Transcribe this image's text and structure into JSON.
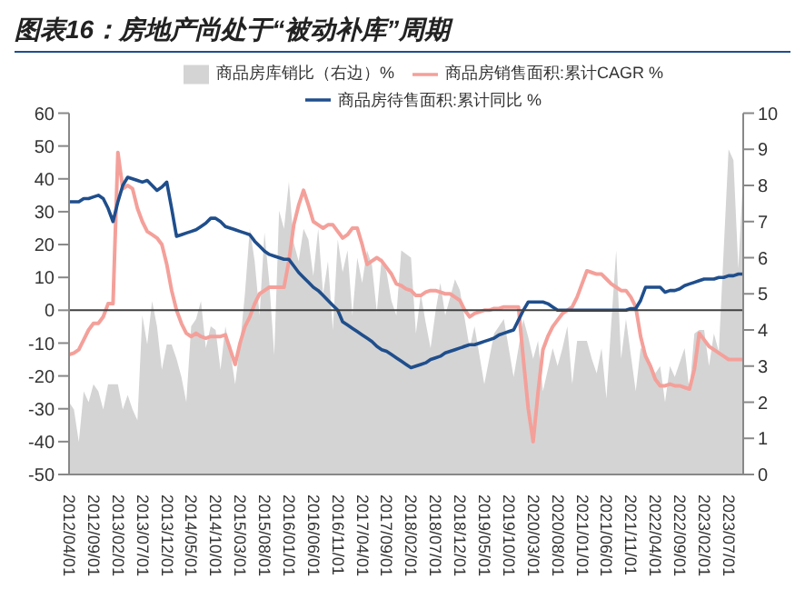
{
  "chart_data": {
    "type": "line",
    "title": "图表16：房地产尚处于“被动补库”周期",
    "categories": [
      "2012/04/01",
      null,
      null,
      null,
      null,
      "2012/09/01",
      null,
      null,
      null,
      null,
      "2013/02/01",
      null,
      null,
      null,
      null,
      "2013/07/01",
      null,
      null,
      null,
      null,
      "2013/12/01",
      null,
      null,
      null,
      null,
      "2014/05/01",
      null,
      null,
      null,
      null,
      "2014/10/01",
      null,
      null,
      null,
      null,
      "2015/03/01",
      null,
      null,
      null,
      null,
      "2015/08/01",
      null,
      null,
      null,
      null,
      "2016/01/01",
      null,
      null,
      null,
      null,
      "2016/06/01",
      null,
      null,
      null,
      null,
      "2016/11/01",
      null,
      null,
      null,
      null,
      "2017/04/01",
      null,
      null,
      null,
      null,
      "2017/09/01",
      null,
      null,
      null,
      null,
      "2018/02/01",
      null,
      null,
      null,
      null,
      "2018/07/01",
      null,
      null,
      null,
      null,
      "2018/12/01",
      null,
      null,
      null,
      null,
      "2019/05/01",
      null,
      null,
      null,
      null,
      "2019/10/01",
      null,
      null,
      null,
      null,
      "2020/03/01",
      null,
      null,
      null,
      null,
      "2020/08/01",
      null,
      null,
      null,
      null,
      "2021/01/01",
      null,
      null,
      null,
      null,
      "2021/06/01",
      null,
      null,
      null,
      null,
      "2021/11/01",
      null,
      null,
      null,
      null,
      "2022/04/01",
      null,
      null,
      null,
      null,
      "2022/09/01",
      null,
      null,
      null,
      null,
      "2023/02/01",
      null,
      null,
      null,
      null,
      "2023/07/01",
      null,
      null,
      null
    ],
    "series": [
      {
        "name": "商品房库销比（右边）%",
        "type": "area",
        "axis": "y2",
        "color": "#d4d4d4",
        "values": [
          2.0,
          1.8,
          0.9,
          2.3,
          2.0,
          2.5,
          2.3,
          1.8,
          2.5,
          2.5,
          2.5,
          1.8,
          2.2,
          1.8,
          1.5,
          4.4,
          3.6,
          4.8,
          4.1,
          2.9,
          3.6,
          3.6,
          3.2,
          2.7,
          2.0,
          4.1,
          4.3,
          4.8,
          3.5,
          4.1,
          4.0,
          2.9,
          4.1,
          3.4,
          2.5,
          3.6,
          5.0,
          6.8,
          5.9,
          4.4,
          6.7,
          5.3,
          3.3,
          7.3,
          6.8,
          8.1,
          6.4,
          5.9,
          6.8,
          6.5,
          5.5,
          6.8,
          5.0,
          5.9,
          4.0,
          6.5,
          5.6,
          6.2,
          4.4,
          6.0,
          5.3,
          6.2,
          5.8,
          4.5,
          6.0,
          5.6,
          4.8,
          4.4,
          6.2,
          6.1,
          6.0,
          3.9,
          5.0,
          4.2,
          3.5,
          4.5,
          5.3,
          4.4,
          4.9,
          5.4,
          5.1,
          4.3,
          3.5,
          4.1,
          3.3,
          2.5,
          3.2,
          3.9,
          4.1,
          4.3,
          3.5,
          2.7,
          3.5,
          4.3,
          3.8,
          3.2,
          3.7,
          2.3,
          2.9,
          3.5,
          3.0,
          3.5,
          4.1,
          2.5,
          3.7,
          3.7,
          3.7,
          3.2,
          2.8,
          3.5,
          2.1,
          4.2,
          6.2,
          3.2,
          4.3,
          3.3,
          2.3,
          3.5,
          3.4,
          3.1,
          2.8,
          3.0,
          2.0,
          3.0,
          2.7,
          3.1,
          3.5,
          2.3,
          3.9,
          4.0,
          4.0,
          3.0,
          3.9,
          3.4,
          6.2,
          9.0,
          8.7,
          5.7,
          8.3
        ]
      },
      {
        "name": "商品房销售面积:累计CAGR  %",
        "color": "#f4a09a",
        "values": [
          -13.5,
          -13,
          -12,
          -9,
          -6,
          -4,
          -4,
          -2,
          2,
          2,
          48,
          37,
          38,
          37,
          31,
          27,
          24,
          23,
          22,
          20,
          14,
          6,
          0,
          -4,
          -7,
          -8,
          -7,
          -8,
          -8.5,
          -8,
          -8,
          -8,
          -7.5,
          -12,
          -16.5,
          -10,
          -5,
          -2,
          2,
          5,
          6,
          7,
          7,
          7,
          7,
          15,
          26,
          32,
          36.5,
          32,
          27,
          26,
          25,
          26,
          26,
          24,
          22,
          23,
          25,
          25,
          20,
          14,
          15,
          16,
          15,
          13,
          11,
          8,
          7.5,
          6.5,
          6,
          4.5,
          4.5,
          5.5,
          6,
          6,
          5.5,
          5,
          5,
          4,
          3,
          0,
          -2,
          -1,
          -0.5,
          0,
          0,
          0.5,
          0.5,
          1,
          1,
          1,
          1,
          -15,
          -30,
          -40,
          -25,
          -12,
          -8,
          -5,
          -3,
          -1,
          0,
          1,
          4,
          8,
          12,
          11.5,
          11,
          11,
          9.5,
          8,
          7,
          6,
          6,
          4,
          1,
          -8,
          -14,
          -17,
          -21,
          -23,
          -23,
          -22.5,
          -23,
          -23,
          -23.5,
          -24,
          -18,
          -7,
          -9,
          -11,
          -12,
          -13,
          -14,
          -15,
          -15,
          -15,
          -15
        ]
      },
      {
        "name": "商品房待售面积:累计同比  %",
        "color": "#1f4e8c",
        "values": [
          33,
          33,
          33,
          34,
          34,
          34.5,
          35,
          34,
          31,
          27,
          33,
          38,
          40.5,
          40,
          39.5,
          39,
          39.5,
          38,
          36.5,
          37.5,
          39,
          31,
          22.5,
          23,
          23.5,
          24,
          24.5,
          25.5,
          26.5,
          28,
          28,
          27,
          25.5,
          25,
          24.5,
          24,
          23.5,
          23,
          21,
          19.5,
          18,
          17,
          16.5,
          16,
          15.5,
          15.5,
          13.5,
          11.5,
          10,
          8.5,
          7,
          6,
          4.5,
          3,
          1.5,
          0,
          -3.5,
          -4.5,
          -5.5,
          -6.5,
          -7.5,
          -8.5,
          -9.5,
          -11,
          -12,
          -12.5,
          -13.5,
          -14.5,
          -15.5,
          -16.5,
          -17.5,
          -17,
          -16.5,
          -16,
          -15,
          -14.5,
          -14,
          -13,
          -12.5,
          -12,
          -11.5,
          -11,
          -10.5,
          -10.5,
          -10,
          -9.5,
          -9,
          -8.5,
          -7.5,
          -7,
          -6.5,
          -6,
          -3,
          0,
          2.5,
          2.5,
          2.5,
          2.5,
          2,
          1,
          0,
          0,
          0,
          0,
          0,
          0,
          0,
          0,
          0,
          0,
          0,
          0,
          0,
          0,
          0,
          0.5,
          0.5,
          3,
          7,
          7,
          7,
          7,
          5.5,
          6,
          6,
          6.5,
          7.5,
          8,
          8.5,
          9,
          9.5,
          9.5,
          9.5,
          10,
          10,
          10.5,
          10.5,
          11,
          11
        ]
      }
    ],
    "ylim": [
      -50,
      60
    ],
    "yticks": [
      -50,
      -40,
      -30,
      -20,
      -10,
      0,
      10,
      20,
      30,
      40,
      50,
      60
    ],
    "y2lim": [
      0,
      10
    ],
    "y2ticks": [
      0,
      1,
      2,
      3,
      4,
      5,
      6,
      7,
      8,
      9,
      10
    ],
    "ref_lines": [
      {
        "axis": "y",
        "value": 0,
        "color": "#404040"
      }
    ],
    "legend": "top",
    "marker": "none",
    "line_style": "solid"
  }
}
